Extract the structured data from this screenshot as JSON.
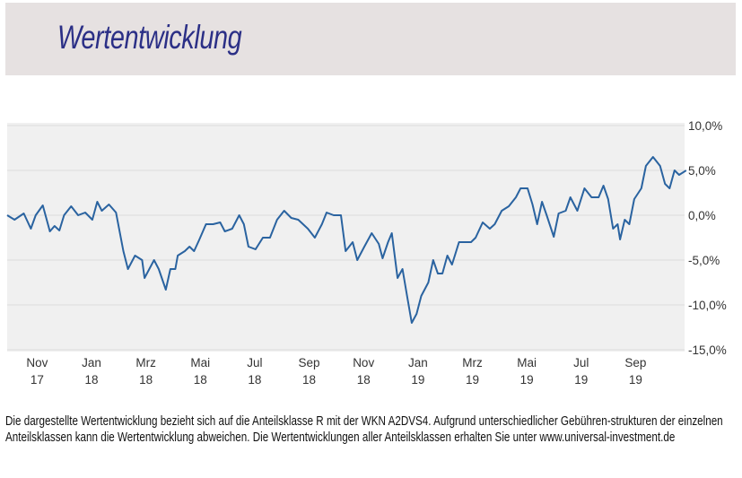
{
  "title": "Wertentwicklung",
  "footer": "Die dargestellte Wertentwicklung bezieht sich auf die Anteilsklasse R mit der WKN A2DVS4. Aufgrund unterschiedlicher Gebühren-strukturen der einzelnen Anteilsklassen kann die Wertentwicklung abweichen. Die Wertentwicklungen aller Anteilsklassen erhalten Sie unter www.universal-investment.de",
  "colors": {
    "title_bg": "#e6e1e1",
    "title": "#2b2f86",
    "plot_bg": "#f0f0f0",
    "line": "#2a63a0"
  },
  "chart_data": {
    "type": "line",
    "title": "",
    "xlabel": "",
    "ylabel": "",
    "x_unit": "months since Nov 2017",
    "xlim": [
      -1.1,
      23.8
    ],
    "ylim": [
      -15,
      10
    ],
    "y_ticks": [
      10,
      5,
      0,
      -5,
      -10,
      -15
    ],
    "y_tick_labels": [
      "10,0%",
      "5,0%",
      "0,0%",
      "-5,0%",
      "-10,0%",
      "-15,0%"
    ],
    "x_ticks": [
      0,
      2,
      4,
      6,
      8,
      10,
      12,
      14,
      16,
      18,
      20,
      22
    ],
    "x_tick_labels": [
      [
        "Nov",
        "17"
      ],
      [
        "Jan",
        "18"
      ],
      [
        "Mrz",
        "18"
      ],
      [
        "Mai",
        "18"
      ],
      [
        "Jul",
        "18"
      ],
      [
        "Sep",
        "18"
      ],
      [
        "Nov",
        "18"
      ],
      [
        "Jan",
        "19"
      ],
      [
        "Mrz",
        "19"
      ],
      [
        "Mai",
        "19"
      ],
      [
        "Jul",
        "19"
      ],
      [
        "Sep",
        "19"
      ]
    ],
    "grid": true,
    "axis_position": "right",
    "series": [
      {
        "name": "Anteilsklasse R",
        "x": [
          -1.1,
          -0.83,
          -0.49,
          -0.23,
          -0.05,
          0.21,
          0.47,
          0.64,
          0.82,
          0.99,
          1.25,
          1.51,
          1.77,
          2.03,
          2.21,
          2.38,
          2.64,
          2.9,
          3.17,
          3.34,
          3.6,
          3.86,
          3.95,
          4.3,
          4.47,
          4.73,
          4.9,
          5.08,
          5.17,
          5.43,
          5.6,
          5.77,
          5.95,
          6.21,
          6.47,
          6.73,
          6.9,
          7.17,
          7.43,
          7.6,
          7.77,
          8.03,
          8.3,
          8.56,
          8.82,
          9.08,
          9.34,
          9.6,
          9.95,
          10.21,
          10.47,
          10.64,
          10.9,
          11.17,
          11.34,
          11.6,
          11.77,
          12.03,
          12.3,
          12.56,
          12.7,
          12.9,
          13.04,
          13.25,
          13.43,
          13.6,
          13.77,
          13.95,
          14.12,
          14.38,
          14.56,
          14.73,
          14.9,
          15.08,
          15.25,
          15.51,
          15.77,
          15.95,
          16.12,
          16.38,
          16.64,
          16.82,
          17.08,
          17.34,
          17.6,
          17.77,
          18.03,
          18.21,
          18.38,
          18.56,
          18.73,
          18.99,
          19.17,
          19.43,
          19.6,
          19.86,
          20.12,
          20.38,
          20.64,
          20.82,
          20.99,
          21.17,
          21.34,
          21.43,
          21.6,
          21.77,
          21.95,
          22.21,
          22.38,
          22.64,
          22.9,
          23.08,
          23.25,
          23.43,
          23.6,
          23.86
        ],
        "values": [
          0,
          -0.5,
          0.2,
          -1.5,
          0,
          1.1,
          -1.8,
          -1.2,
          -1.7,
          0,
          1.0,
          0,
          0.3,
          -0.5,
          1.5,
          0.5,
          1.2,
          0.3,
          -4,
          -6,
          -4.5,
          -5,
          -7,
          -5,
          -6,
          -8.3,
          -6,
          -6,
          -4.5,
          -4,
          -3.5,
          -4,
          -2.8,
          -1,
          -1,
          -0.8,
          -1.8,
          -1.5,
          0,
          -1,
          -3.5,
          -3.8,
          -2.5,
          -2.5,
          -0.5,
          0.5,
          -0.3,
          -0.5,
          -1.5,
          -2.5,
          -1,
          0.3,
          0,
          0,
          -4,
          -3,
          -5,
          -3.5,
          -2,
          -3.2,
          -4.8,
          -3,
          -2,
          -7,
          -6,
          -9,
          -12,
          -11,
          -9,
          -7.5,
          -5,
          -6.5,
          -6.5,
          -4.5,
          -5.5,
          -3,
          -3,
          -3,
          -2.5,
          -0.8,
          -1.5,
          -1,
          0.5,
          1,
          2,
          3,
          3,
          1.2,
          -1,
          1.5,
          0,
          -2.4,
          0.2,
          0.5,
          2,
          0.5,
          3,
          2,
          2,
          3.3,
          1.8,
          -1.5,
          -1,
          -2.7,
          -0.5,
          -1,
          1.8,
          3,
          5.5,
          6.5,
          5.5,
          3.5,
          3,
          5,
          4.5,
          5
        ]
      }
    ]
  }
}
